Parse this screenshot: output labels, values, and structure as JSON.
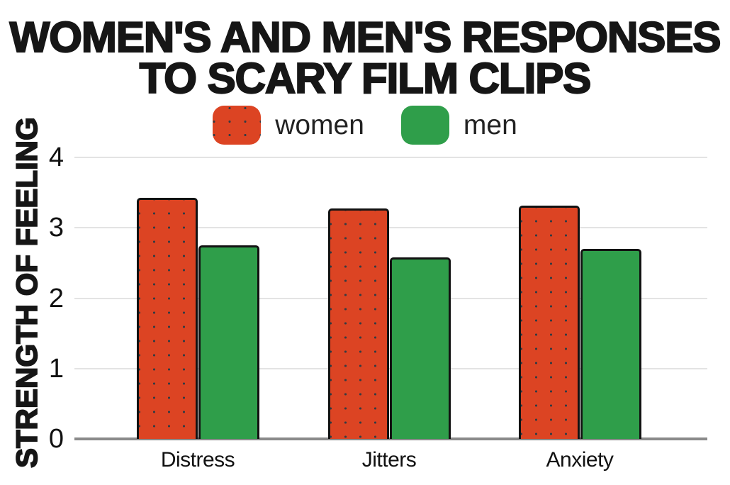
{
  "page": {
    "background": "#ffffff"
  },
  "chart_data": {
    "type": "bar",
    "title": "WOMEN'S AND MEN'S RESPONSES TO SCARY FILM CLIPS",
    "title_lines": [
      "WOMEN'S AND MEN'S RESPONSES",
      "TO SCARY FILM CLIPS"
    ],
    "ylabel": "STRENGTH OF FEELING",
    "xlabel": "",
    "categories": [
      "Distress",
      "Jitters",
      "Anxiety"
    ],
    "series": [
      {
        "name": "women",
        "color": "#DC4423",
        "fill_pattern": "dotted",
        "values": [
          3.43,
          3.27,
          3.32
        ]
      },
      {
        "name": "men",
        "color": "#2F9E4A",
        "fill_pattern": "solid",
        "values": [
          2.75,
          2.58,
          2.7
        ]
      }
    ],
    "ylim": [
      0,
      4
    ],
    "yticks": [
      0,
      1,
      2,
      3,
      4
    ],
    "grid": true,
    "legend_position": "top-center",
    "colors": {
      "gridline": "#E3E3E3",
      "baseline": "#8A8A8A",
      "bar_outline": "#121212",
      "dot_pattern": "#363B42",
      "text": "#111111",
      "title_text": "#161616",
      "legend_text": "#222222"
    }
  }
}
